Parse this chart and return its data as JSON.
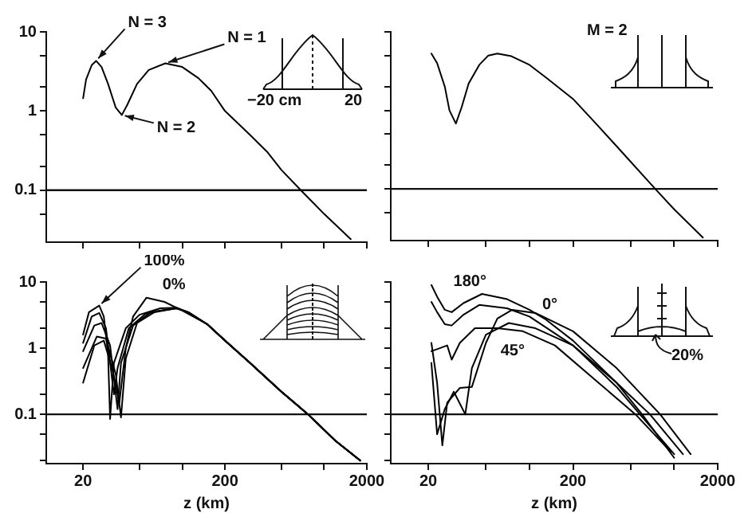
{
  "chart_data": [
    {
      "type": "line",
      "log": "xy",
      "marker": "none",
      "tick_labels": "y",
      "xlim": [
        11,
        2000
      ],
      "ylim": [
        0.022,
        10
      ],
      "xticks": [
        20,
        50,
        100,
        200,
        500,
        1000,
        2000
      ],
      "yticks": [
        10,
        {
          "value": 5,
          "label": null
        },
        {
          "value": 2,
          "label": null
        },
        1,
        {
          "value": 0.5,
          "label": null
        },
        {
          "value": 0.2,
          "label": null
        },
        0.1,
        {
          "value": 0.05,
          "label": null
        }
      ],
      "ref_lines": [
        {
          "axis": "y",
          "value": 0.1
        }
      ],
      "series": [
        {
          "color": "#000000",
          "x": [
            20,
            21,
            23,
            24.7,
            27,
            30,
            34,
            37.5,
            41,
            48,
            58,
            76,
            100,
            130,
            160,
            200,
            300,
            400,
            500,
            700,
            1000,
            1540
          ],
          "values": [
            1.45,
            2.5,
            3.8,
            4.3,
            3.6,
            2.2,
            1.1,
            0.89,
            1.2,
            2.2,
            3.3,
            4.0,
            3.6,
            2.6,
            1.8,
            1.0,
            0.5,
            0.3,
            0.18,
            0.096,
            0.05,
            0.024
          ]
        }
      ],
      "annotations": [
        {
          "text": "N = 3",
          "x": 24.7,
          "y": 4.3
        },
        {
          "text": "N = 2",
          "x": 37.5,
          "y": 0.89
        },
        {
          "text": "N = 1",
          "x": 76,
          "y": 4.0
        },
        "−20 cm",
        "20"
      ]
    },
    {
      "type": "line",
      "log": "xy",
      "marker": "none",
      "tick_labels": false,
      "xlim": [
        11,
        2000
      ],
      "ylim": [
        0.022,
        10
      ],
      "xticks": [
        20,
        50,
        100,
        200,
        500,
        1000,
        2000
      ],
      "yticks": [
        10,
        5,
        2,
        1,
        0.5,
        0.2,
        0.1,
        0.05
      ],
      "ref_lines": [
        {
          "axis": "y",
          "value": 0.1
        }
      ],
      "series": [
        {
          "color": "#000000",
          "x": [
            21,
            23,
            26,
            28,
            31,
            34,
            38,
            45,
            52,
            60,
            75,
            100,
            131,
            200,
            288,
            400,
            740,
            1000,
            1580
          ],
          "values": [
            5.3,
            4,
            2,
            1,
            0.68,
            1.1,
            2.2,
            3.8,
            5,
            5.3,
            4.9,
            3.8,
            2.6,
            1.4,
            0.68,
            0.35,
            0.1,
            0.055,
            0.024
          ]
        }
      ],
      "annotations": [
        "M = 2"
      ]
    },
    {
      "type": "line",
      "log": "xy",
      "marker": "none",
      "xlabel": "z (km)",
      "xlim": [
        11,
        2000
      ],
      "ylim": [
        0.018,
        10
      ],
      "xticks": [
        20,
        {
          "value": 50,
          "label": null
        },
        {
          "value": 100,
          "label": null
        },
        200,
        {
          "value": 500,
          "label": null
        },
        {
          "value": 1000,
          "label": null
        },
        2000
      ],
      "yticks": [
        10,
        {
          "value": 5,
          "label": null
        },
        {
          "value": 2,
          "label": null
        },
        1,
        {
          "value": 0.5,
          "label": null
        },
        {
          "value": 0.2,
          "label": null
        },
        0.1,
        {
          "value": 0.05,
          "label": null
        },
        {
          "value": 0.02,
          "label": null
        }
      ],
      "ref_lines": [
        {
          "axis": "y",
          "value": 0.1
        }
      ],
      "series": [
        {
          "color": "#000000",
          "x": [
            20,
            22,
            26,
            28,
            30,
            31,
            33,
            40,
            50,
            70,
            91,
            110,
            150,
            200,
            300,
            500,
            770,
            1200,
            1800
          ],
          "values": [
            1.6,
            3.5,
            4.4,
            3,
            0.8,
            0.085,
            0.6,
            2,
            3.2,
            4,
            4.1,
            3.5,
            2.3,
            1.3,
            0.6,
            0.22,
            0.1,
            0.04,
            0.02
          ]
        },
        {
          "color": "#000000",
          "x": [
            20,
            23,
            26,
            29,
            33,
            35,
            42,
            55,
            91,
            110,
            150,
            200,
            300,
            500,
            770,
            1200,
            1800
          ],
          "values": [
            1.2,
            3.0,
            3.4,
            2,
            0.2,
            0.5,
            2,
            3.3,
            4,
            3.5,
            2.3,
            1.3,
            0.6,
            0.22,
            0.1,
            0.04,
            0.02
          ]
        },
        {
          "color": "#000000",
          "x": [
            20,
            24,
            27,
            31,
            35,
            37,
            45,
            60,
            91,
            110,
            150,
            200,
            300,
            500,
            770,
            1200,
            1800
          ],
          "values": [
            0.9,
            2.2,
            2.4,
            1.1,
            0.12,
            0.6,
            2.2,
            3.5,
            4,
            3.5,
            2.3,
            1.3,
            0.6,
            0.22,
            0.1,
            0.04,
            0.02
          ]
        },
        {
          "color": "#000000",
          "x": [
            20,
            25,
            29,
            34,
            37,
            40,
            48,
            65,
            91,
            110,
            150,
            200,
            300,
            500,
            770,
            1200,
            1800
          ],
          "values": [
            0.5,
            1.5,
            1.4,
            0.4,
            0.09,
            0.7,
            2.4,
            3.6,
            4,
            3.5,
            2.3,
            1.3,
            0.6,
            0.22,
            0.1,
            0.04,
            0.02
          ]
        },
        {
          "color": "#000000",
          "x": [
            20,
            24,
            28,
            32,
            36,
            40,
            45,
            56,
            75,
            100,
            150,
            200,
            300,
            500,
            770,
            1200,
            1800
          ],
          "values": [
            0.3,
            1.1,
            1.3,
            0.5,
            0.15,
            1,
            3,
            5.8,
            5,
            3.7,
            2.3,
            1.3,
            0.6,
            0.22,
            0.1,
            0.04,
            0.02
          ]
        }
      ],
      "annotations": [
        {
          "text": "100%",
          "x": 26,
          "y": 4.4
        },
        {
          "text": "0%",
          "x": 56,
          "y": 5.8
        }
      ]
    },
    {
      "type": "line",
      "log": "xy",
      "marker": "none",
      "tick_labels": "x",
      "xlabel": "z (km)",
      "xlim": [
        11,
        2000
      ],
      "ylim": [
        0.018,
        10
      ],
      "xticks": [
        20,
        {
          "value": 50,
          "label": null
        },
        {
          "value": 100,
          "label": null
        },
        200,
        {
          "value": 500,
          "label": null
        },
        {
          "value": 1000,
          "label": null
        },
        2000
      ],
      "yticks": [
        10,
        5,
        2,
        1,
        0.5,
        0.2,
        0.1,
        0.05,
        0.02
      ],
      "ref_lines": [
        {
          "axis": "y",
          "value": 0.1
        }
      ],
      "series": [
        {
          "color": "#000000",
          "x": [
            21,
            23,
            26,
            29,
            35,
            47,
            70,
            100,
            130,
            200,
            400,
            600,
            1000
          ],
          "values": [
            9,
            6,
            3.8,
            3.5,
            4.8,
            6.6,
            5.5,
            3.8,
            2.7,
            1.3,
            0.3,
            0.1,
            0.022
          ]
        },
        {
          "color": "#000000",
          "x": [
            21,
            23,
            26,
            29,
            35,
            45,
            70,
            100,
            200,
            400,
            580,
            1000
          ],
          "values": [
            5,
            3.5,
            2.3,
            2.2,
            3.2,
            4.5,
            4,
            3,
            1.1,
            0.26,
            0.1,
            0.025
          ]
        },
        {
          "color": "#000000",
          "x": [
            21,
            24,
            27,
            29,
            33,
            42,
            60,
            90,
            150,
            300,
            540,
            950
          ],
          "values": [
            0.9,
            1.0,
            1.1,
            0.67,
            1.2,
            2,
            2.0,
            1.8,
            1.1,
            0.3,
            0.1,
            0.027
          ]
        },
        {
          "color": "#000000",
          "x": [
            21,
            23,
            25,
            27,
            33,
            40,
            50,
            60,
            76,
            110,
            200,
            400,
            800,
            1300
          ],
          "values": [
            1.2,
            0.3,
            0.034,
            0.15,
            0.25,
            0.26,
            1.2,
            2.8,
            3.8,
            3.4,
            1.8,
            0.5,
            0.1,
            0.025
          ]
        },
        {
          "color": "#000000",
          "x": [
            21,
            23,
            26,
            30,
            36,
            40,
            50,
            72,
            110,
            200,
            400,
            680,
            1150
          ],
          "values": [
            0.6,
            0.05,
            0.12,
            0.22,
            0.1,
            0.5,
            1.6,
            2.4,
            2.0,
            1.1,
            0.3,
            0.1,
            0.025
          ]
        }
      ],
      "annotations": [
        {
          "text": "180°",
          "x": 22,
          "y": 8.5
        },
        {
          "text": "0°",
          "x": 95,
          "y": 3.6
        },
        {
          "text": "45°",
          "x": 60,
          "y": 2.0
        },
        "20%"
      ]
    }
  ]
}
